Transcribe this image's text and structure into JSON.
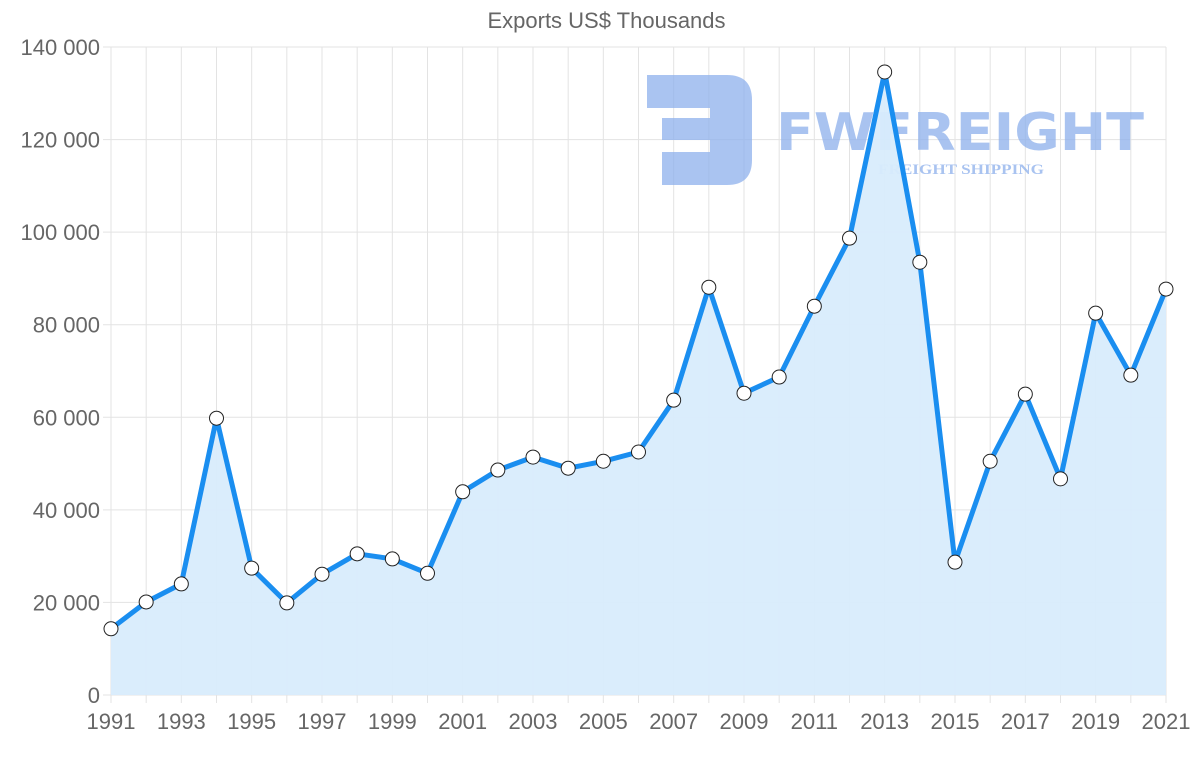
{
  "chart": {
    "title": "Exports US$ Thousands"
  },
  "watermark": {
    "brand": "FWFREIGHT",
    "tagline": "FREIGHT SHIPPING",
    "color": "#8db0ec"
  },
  "colors": {
    "line": "#1a8ef0",
    "fill": "#d8ecfc",
    "grid": "#e3e3e3",
    "text": "#666666"
  },
  "chart_data": {
    "type": "area",
    "title": "Exports US$ Thousands",
    "xlabel": "",
    "ylabel": "",
    "ylim": [
      0,
      140000
    ],
    "yticks": [
      0,
      20000,
      40000,
      60000,
      80000,
      100000,
      120000,
      140000
    ],
    "ytick_labels": [
      "0",
      "20 000",
      "40 000",
      "60 000",
      "80 000",
      "100 000",
      "120 000",
      "140 000"
    ],
    "xtick_labels": [
      "1991",
      "1993",
      "1995",
      "1997",
      "1999",
      "2001",
      "2003",
      "2005",
      "2007",
      "2009",
      "2011",
      "2013",
      "2015",
      "2017",
      "2019",
      "2021"
    ],
    "grid": true,
    "legend": null,
    "x": [
      1991,
      1992,
      1993,
      1994,
      1995,
      1996,
      1997,
      1998,
      1999,
      2000,
      2001,
      2002,
      2003,
      2004,
      2005,
      2006,
      2007,
      2008,
      2009,
      2010,
      2011,
      2012,
      2013,
      2014,
      2015,
      2016,
      2017,
      2018,
      2019,
      2020,
      2021
    ],
    "series": [
      {
        "name": "Exports",
        "values": [
          14300,
          20100,
          24000,
          59800,
          27400,
          19900,
          26100,
          30500,
          29400,
          26300,
          43900,
          48600,
          51400,
          49000,
          50500,
          52500,
          63700,
          88100,
          65200,
          68700,
          84000,
          98700,
          134600,
          93500,
          28700,
          50500,
          65000,
          46700,
          82500,
          69100,
          87700
        ]
      }
    ]
  }
}
